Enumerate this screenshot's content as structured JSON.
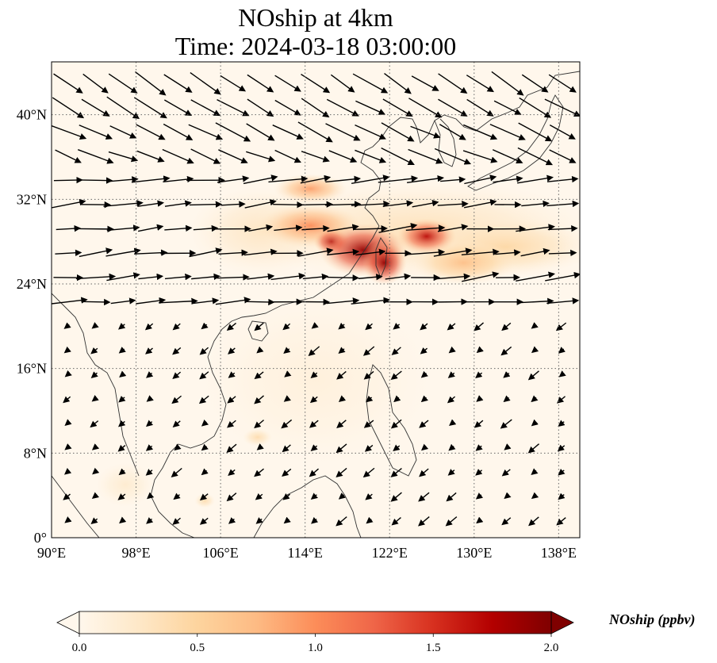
{
  "title": {
    "line1": "NOship at 4km",
    "line2": "Time: 2024-03-18 03:00:00"
  },
  "map": {
    "projection": "PlateCarree",
    "lon_range": [
      90,
      140
    ],
    "lat_range": [
      0,
      45
    ],
    "gridlines": "dotted",
    "x_ticks": [
      {
        "value": 90,
        "label": "90°E"
      },
      {
        "value": 98,
        "label": "98°E"
      },
      {
        "value": 106,
        "label": "106°E"
      },
      {
        "value": 114,
        "label": "114°E"
      },
      {
        "value": 122,
        "label": "122°E"
      },
      {
        "value": 130,
        "label": "130°E"
      },
      {
        "value": 138,
        "label": "138°E"
      }
    ],
    "y_ticks": [
      {
        "value": 0,
        "label": "0°"
      },
      {
        "value": 8,
        "label": "8°N"
      },
      {
        "value": 16,
        "label": "16°N"
      },
      {
        "value": 24,
        "label": "24°N"
      },
      {
        "value": 32,
        "label": "32°N"
      },
      {
        "value": 40,
        "label": "40°N"
      }
    ],
    "concentration_hotspots": [
      {
        "lon": 119.5,
        "lat": 27.2,
        "lon_radius": 3.0,
        "lat_radius": 1.8,
        "value": 1.9
      },
      {
        "lon": 121.5,
        "lat": 26.0,
        "lon_radius": 1.5,
        "lat_radius": 1.5,
        "value": 1.9
      },
      {
        "lon": 125.5,
        "lat": 28.5,
        "lon_radius": 2.0,
        "lat_radius": 1.2,
        "value": 1.7
      },
      {
        "lon": 116.5,
        "lat": 28.0,
        "lon_radius": 1.2,
        "lat_radius": 0.9,
        "value": 1.8
      },
      {
        "lon": 114.5,
        "lat": 29.5,
        "lon_radius": 3.5,
        "lat_radius": 1.5,
        "value": 1.0
      },
      {
        "lon": 114.5,
        "lat": 33.0,
        "lon_radius": 2.5,
        "lat_radius": 1.0,
        "value": 0.9
      },
      {
        "lon": 129.0,
        "lat": 26.0,
        "lon_radius": 3.5,
        "lat_radius": 1.5,
        "value": 0.7
      },
      {
        "lon": 133.0,
        "lat": 27.5,
        "lon_radius": 6.0,
        "lat_radius": 2.0,
        "value": 0.45
      },
      {
        "lon": 125.0,
        "lat": 29.0,
        "lon_radius": 12.0,
        "lat_radius": 3.5,
        "value": 0.35
      },
      {
        "lon": 110.0,
        "lat": 29.0,
        "lon_radius": 5.0,
        "lat_radius": 3.0,
        "value": 0.3
      },
      {
        "lon": 109.5,
        "lat": 9.5,
        "lon_radius": 1.0,
        "lat_radius": 0.6,
        "value": 0.4
      },
      {
        "lon": 104.5,
        "lat": 3.5,
        "lon_radius": 0.7,
        "lat_radius": 0.5,
        "value": 0.4
      },
      {
        "lon": 115.0,
        "lat": 15.0,
        "lon_radius": 8.0,
        "lat_radius": 6.0,
        "value": 0.12
      },
      {
        "lon": 97.0,
        "lat": 5.0,
        "lon_radius": 2.0,
        "lat_radius": 1.5,
        "value": 0.2
      }
    ],
    "wind_field": {
      "north_band": {
        "u": 1.0,
        "v": -0.3,
        "speed": "strong"
      },
      "mid_band": {
        "u": 1.0,
        "v": 0.1,
        "speed": "strong"
      },
      "south_sea": {
        "u": -0.6,
        "v": -0.5,
        "speed": "light"
      }
    }
  },
  "colorbar": {
    "colormap": "OrRd",
    "colors": [
      "#fff7ec",
      "#fee8c8",
      "#fdd49e",
      "#fdbb84",
      "#fc8d59",
      "#ef6548",
      "#d7301f",
      "#b30000",
      "#7f0000"
    ],
    "range": [
      0.0,
      2.0
    ],
    "ticks": [
      {
        "value": 0.0,
        "label": "0.0"
      },
      {
        "value": 0.5,
        "label": "0.5"
      },
      {
        "value": 1.0,
        "label": "1.0"
      },
      {
        "value": 1.5,
        "label": "1.5"
      },
      {
        "value": 2.0,
        "label": "2.0"
      }
    ],
    "label": "NOship (ppbv)"
  }
}
